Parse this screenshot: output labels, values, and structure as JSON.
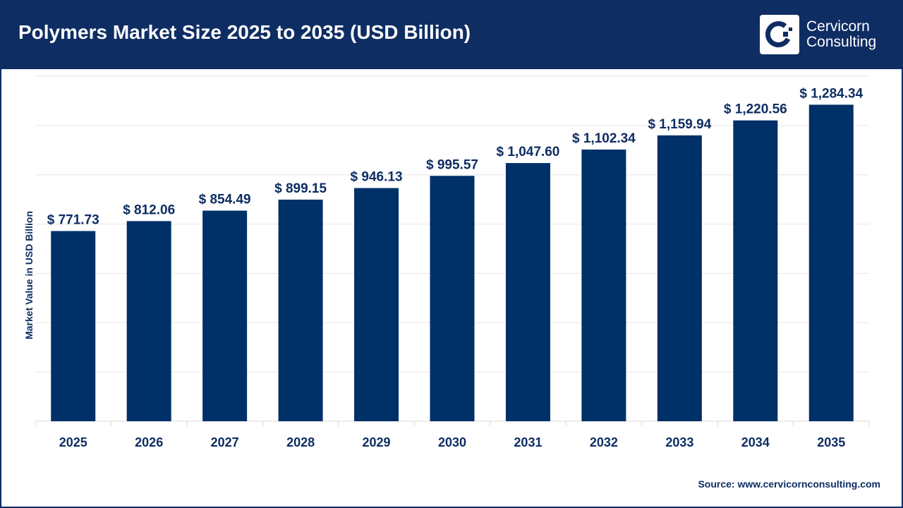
{
  "title": "Polymers Market Size 2025 to 2035 (USD Billion)",
  "logo": {
    "line1": "Cervicorn",
    "line2": "Consulting"
  },
  "source": "Source: www.cervicornconsulting.com",
  "colors": {
    "header": "#0e2d63",
    "bar": "#003068",
    "grid": "#e6e6e6"
  },
  "chart_data": {
    "type": "bar",
    "title": "Polymers Market Size 2025 to 2035 (USD Billion)",
    "xlabel": "",
    "ylabel": "Market Value in USD Billion",
    "ylim": [
      0,
      1400
    ],
    "grid": true,
    "y_tick_labels_shown": false,
    "categories": [
      "2025",
      "2026",
      "2027",
      "2028",
      "2029",
      "2030",
      "2031",
      "2032",
      "2033",
      "2034",
      "2035"
    ],
    "values": [
      771.73,
      812.06,
      854.49,
      899.15,
      946.13,
      995.57,
      1047.6,
      1102.34,
      1159.94,
      1220.56,
      1284.34
    ],
    "data_labels": [
      "$ 771.73",
      "$ 812.06",
      "$ 854.49",
      "$ 899.15",
      "$ 946.13",
      "$ 995.57",
      "$ 1,047.60",
      "$ 1,102.34",
      "$ 1,159.94",
      "$ 1,220.56",
      "$ 1,284.34"
    ]
  }
}
